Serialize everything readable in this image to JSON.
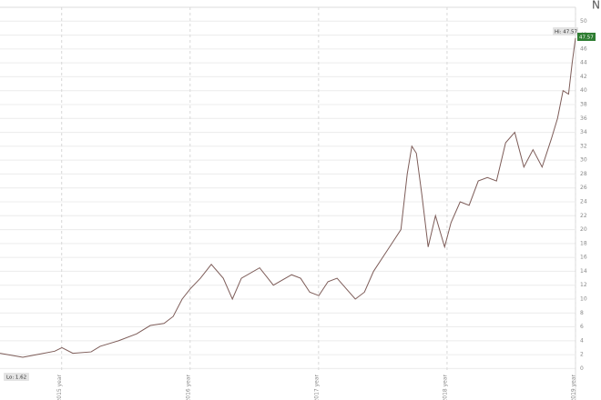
{
  "chart_data": {
    "type": "line",
    "x": [
      2014.52,
      2014.697,
      2014.804,
      2014.946,
      2015.002,
      2015.087,
      2015.229,
      2015.3,
      2015.442,
      2015.584,
      2015.69,
      2015.797,
      2015.868,
      2015.938,
      2016.002,
      2016.08,
      2016.165,
      2016.258,
      2016.329,
      2016.399,
      2016.541,
      2016.648,
      2016.79,
      2016.86,
      2016.931,
      2017.002,
      2017.073,
      2017.144,
      2017.215,
      2017.286,
      2017.357,
      2017.428,
      2017.499,
      2017.57,
      2017.641,
      2017.69,
      2017.726,
      2017.761,
      2017.804,
      2017.853,
      2017.91,
      2017.981,
      2018.031,
      2018.102,
      2018.172,
      2018.243,
      2018.314,
      2018.385,
      2018.456,
      2018.527,
      2018.598,
      2018.669,
      2018.74,
      2018.811,
      2018.86,
      2018.903,
      2018.946,
      2018.974,
      2019.0
    ],
    "series": [
      {
        "color": "#7d5c58",
        "values": [
          2.2,
          1.62,
          2.0,
          2.5,
          3.0,
          2.2,
          2.4,
          3.2,
          4.0,
          5.0,
          6.2,
          6.5,
          7.5,
          10.0,
          11.5,
          13.0,
          15.0,
          13.0,
          10.0,
          13.0,
          14.5,
          12.0,
          13.5,
          13.0,
          11.0,
          10.5,
          12.5,
          13.0,
          11.5,
          10.0,
          11.0,
          14.0,
          16.0,
          18.0,
          20.0,
          28.0,
          32.0,
          31.0,
          25.0,
          17.5,
          22.0,
          17.5,
          21.0,
          24.0,
          23.5,
          27.0,
          27.5,
          27.0,
          32.5,
          34.0,
          29.0,
          31.5,
          29.0,
          33.0,
          36.0,
          40.0,
          39.5,
          44.0,
          47.57
        ]
      }
    ],
    "xlim": [
      2014.52,
      2019.0
    ],
    "xticks": [
      {
        "value": 2015,
        "label": "2015 year"
      },
      {
        "value": 2016,
        "label": "2016 year"
      },
      {
        "value": 2017,
        "label": "2017 year"
      },
      {
        "value": 2018,
        "label": "2018 year"
      },
      {
        "value": 2019,
        "label": "2019 year"
      }
    ],
    "ylim": [
      -0.6,
      52
    ],
    "yticks": [
      0,
      2,
      4,
      6,
      8,
      10,
      12,
      14,
      16,
      18,
      20,
      22,
      24,
      26,
      28,
      30,
      32,
      34,
      36,
      38,
      40,
      42,
      44,
      46,
      48,
      50
    ],
    "grid": true,
    "hi_label": "Hi: 47.57",
    "last_label": "47.57",
    "lo_label": "Lo: 1.62",
    "corner_label": "N"
  }
}
